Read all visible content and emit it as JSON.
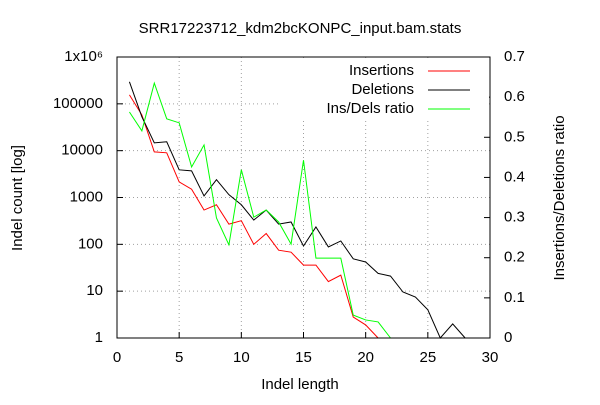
{
  "chart_data": {
    "type": "line",
    "title": "SRR17223712_kdm2bcKONPC_input.bam.stats",
    "x_label": "Indel length",
    "y_label": "Indel count [log]",
    "y2_label": "Insertions/Deletions ratio",
    "x": [
      1,
      2,
      3,
      4,
      5,
      6,
      7,
      8,
      9,
      10,
      11,
      12,
      13,
      14,
      15,
      16,
      17,
      18,
      19,
      20,
      21,
      22,
      23,
      24,
      25,
      26,
      27,
      28
    ],
    "series": [
      {
        "name": "Insertions",
        "color": "#ff0000",
        "values": [
          155000,
          58000,
          9400,
          9000,
          2150,
          1500,
          540,
          700,
          270,
          320,
          100,
          170,
          75,
          68,
          36,
          36,
          16,
          22,
          2.8,
          1.9,
          1,
          null,
          null,
          null,
          null,
          null,
          null,
          null
        ]
      },
      {
        "name": "Deletions",
        "color": "#000000",
        "values": [
          295000,
          53000,
          14700,
          15500,
          3900,
          3700,
          1080,
          2400,
          1150,
          700,
          330,
          540,
          270,
          300,
          92,
          235,
          88,
          118,
          49,
          42,
          24,
          21,
          9.6,
          7.5,
          4,
          1,
          2,
          1
        ]
      },
      {
        "name": "Ins/Dels ratio",
        "color": "#00ff00",
        "axis": "y2",
        "values": [
          0.563,
          0.516,
          0.635,
          0.546,
          0.536,
          0.426,
          0.481,
          0.299,
          0.232,
          0.419,
          0.301,
          0.319,
          0.289,
          0.234,
          0.443,
          0.199,
          0.199,
          0.199,
          0.057,
          0.045,
          0.04,
          0,
          null,
          null,
          null,
          null,
          null,
          null
        ]
      }
    ],
    "xlim": [
      0,
      30
    ],
    "xticks": [
      0,
      5,
      10,
      15,
      20,
      25,
      30
    ],
    "ylim": [
      1,
      1000000
    ],
    "ylog": true,
    "yticks": [
      1,
      10,
      100,
      1000,
      10000,
      100000,
      {
        "value": 1000000,
        "label": "1x10⁶"
      }
    ],
    "y2lim": [
      0,
      0.7
    ],
    "y2ticks": [
      0,
      0.1,
      0.2,
      0.3,
      0.4,
      0.5,
      0.6,
      0.7
    ],
    "grid": true,
    "legend": "top-right"
  }
}
